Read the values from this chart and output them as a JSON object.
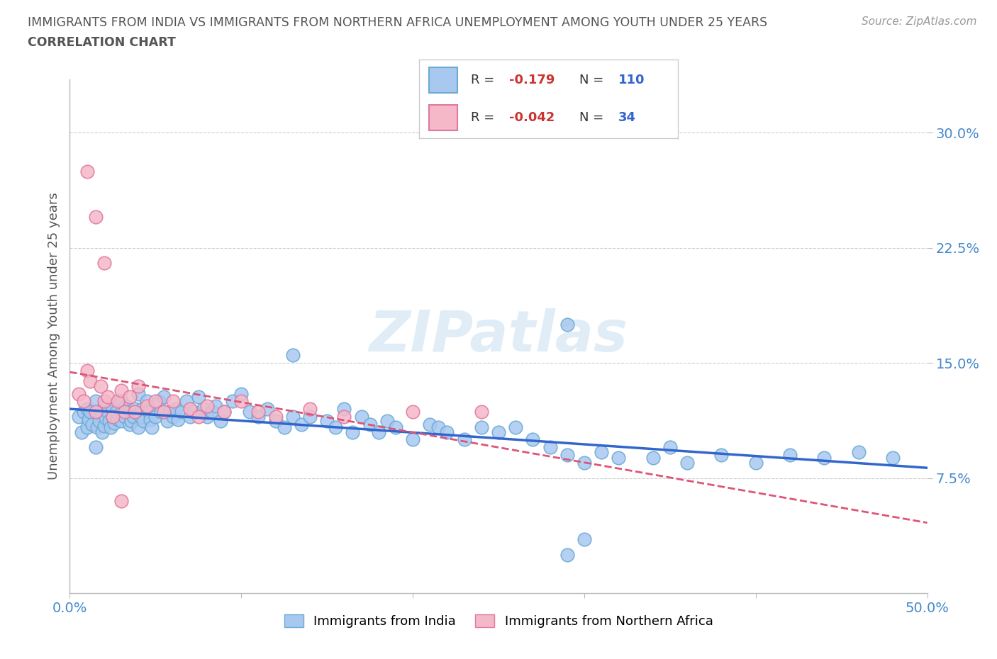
{
  "title_line1": "IMMIGRANTS FROM INDIA VS IMMIGRANTS FROM NORTHERN AFRICA UNEMPLOYMENT AMONG YOUTH UNDER 25 YEARS",
  "title_line2": "CORRELATION CHART",
  "source": "Source: ZipAtlas.com",
  "ylabel": "Unemployment Among Youth under 25 years",
  "xlim": [
    0.0,
    0.5
  ],
  "ylim": [
    0.0,
    0.335
  ],
  "ytick_vals": [
    0.075,
    0.15,
    0.225,
    0.3
  ],
  "ytick_labels": [
    "7.5%",
    "15.0%",
    "22.5%",
    "30.0%"
  ],
  "xtick_vals": [
    0.0,
    0.1,
    0.2,
    0.3,
    0.4,
    0.5
  ],
  "xtick_labels": [
    "0.0%",
    "",
    "",
    "",
    "",
    "50.0%"
  ],
  "india_color": "#a8c8f0",
  "india_edge_color": "#6aaad4",
  "nafrica_color": "#f5b8c8",
  "nafrica_edge_color": "#e078a0",
  "india_line_color": "#3366cc",
  "nafrica_line_color": "#dd5577",
  "india_R": -0.179,
  "india_N": 110,
  "nafrica_R": -0.042,
  "nafrica_N": 34,
  "watermark": "ZIPatlas",
  "background_color": "#ffffff",
  "grid_color": "#cccccc",
  "title_color": "#555555",
  "axis_label_color": "#555555",
  "tick_color": "#4488cc",
  "legend_label_color": "#333333",
  "legend_R_color": "#cc3333",
  "legend_N_color": "#3366cc",
  "india_scatter_x": [
    0.005,
    0.007,
    0.008,
    0.01,
    0.01,
    0.011,
    0.012,
    0.013,
    0.015,
    0.015,
    0.016,
    0.017,
    0.018,
    0.019,
    0.02,
    0.02,
    0.021,
    0.022,
    0.023,
    0.024,
    0.025,
    0.025,
    0.026,
    0.027,
    0.028,
    0.03,
    0.03,
    0.031,
    0.032,
    0.033,
    0.035,
    0.035,
    0.036,
    0.037,
    0.038,
    0.04,
    0.04,
    0.041,
    0.042,
    0.043,
    0.045,
    0.046,
    0.047,
    0.048,
    0.05,
    0.052,
    0.053,
    0.055,
    0.057,
    0.058,
    0.06,
    0.062,
    0.063,
    0.065,
    0.068,
    0.07,
    0.072,
    0.075,
    0.078,
    0.08,
    0.083,
    0.085,
    0.088,
    0.09,
    0.095,
    0.1,
    0.105,
    0.11,
    0.115,
    0.12,
    0.125,
    0.13,
    0.135,
    0.14,
    0.15,
    0.155,
    0.16,
    0.165,
    0.17,
    0.175,
    0.18,
    0.185,
    0.19,
    0.2,
    0.21,
    0.215,
    0.22,
    0.23,
    0.24,
    0.25,
    0.26,
    0.27,
    0.28,
    0.29,
    0.3,
    0.31,
    0.32,
    0.35,
    0.38,
    0.4,
    0.42,
    0.44,
    0.46,
    0.48,
    0.34,
    0.36,
    0.29,
    0.13,
    0.29,
    0.3
  ],
  "india_scatter_y": [
    0.115,
    0.105,
    0.118,
    0.12,
    0.108,
    0.113,
    0.118,
    0.11,
    0.095,
    0.125,
    0.108,
    0.112,
    0.118,
    0.105,
    0.122,
    0.109,
    0.114,
    0.118,
    0.112,
    0.108,
    0.12,
    0.115,
    0.111,
    0.118,
    0.113,
    0.125,
    0.112,
    0.119,
    0.115,
    0.122,
    0.11,
    0.118,
    0.112,
    0.115,
    0.12,
    0.13,
    0.108,
    0.115,
    0.12,
    0.112,
    0.125,
    0.118,
    0.113,
    0.108,
    0.115,
    0.125,
    0.118,
    0.128,
    0.112,
    0.118,
    0.115,
    0.12,
    0.113,
    0.118,
    0.125,
    0.115,
    0.118,
    0.128,
    0.12,
    0.115,
    0.118,
    0.122,
    0.112,
    0.118,
    0.125,
    0.13,
    0.118,
    0.115,
    0.12,
    0.112,
    0.108,
    0.115,
    0.11,
    0.115,
    0.112,
    0.108,
    0.12,
    0.105,
    0.115,
    0.11,
    0.105,
    0.112,
    0.108,
    0.1,
    0.11,
    0.108,
    0.105,
    0.1,
    0.108,
    0.105,
    0.108,
    0.1,
    0.095,
    0.09,
    0.085,
    0.092,
    0.088,
    0.095,
    0.09,
    0.085,
    0.09,
    0.088,
    0.092,
    0.088,
    0.088,
    0.085,
    0.175,
    0.155,
    0.025,
    0.035
  ],
  "nafrica_scatter_x": [
    0.005,
    0.008,
    0.01,
    0.012,
    0.015,
    0.018,
    0.02,
    0.022,
    0.025,
    0.028,
    0.03,
    0.032,
    0.035,
    0.038,
    0.04,
    0.045,
    0.05,
    0.055,
    0.06,
    0.07,
    0.075,
    0.08,
    0.09,
    0.1,
    0.11,
    0.12,
    0.14,
    0.16,
    0.2,
    0.24,
    0.01,
    0.015,
    0.02,
    0.03
  ],
  "nafrica_scatter_y": [
    0.13,
    0.125,
    0.145,
    0.138,
    0.118,
    0.135,
    0.125,
    0.128,
    0.115,
    0.125,
    0.132,
    0.118,
    0.128,
    0.118,
    0.135,
    0.122,
    0.125,
    0.118,
    0.125,
    0.12,
    0.115,
    0.122,
    0.118,
    0.125,
    0.118,
    0.115,
    0.12,
    0.115,
    0.118,
    0.118,
    0.275,
    0.245,
    0.215,
    0.06
  ]
}
